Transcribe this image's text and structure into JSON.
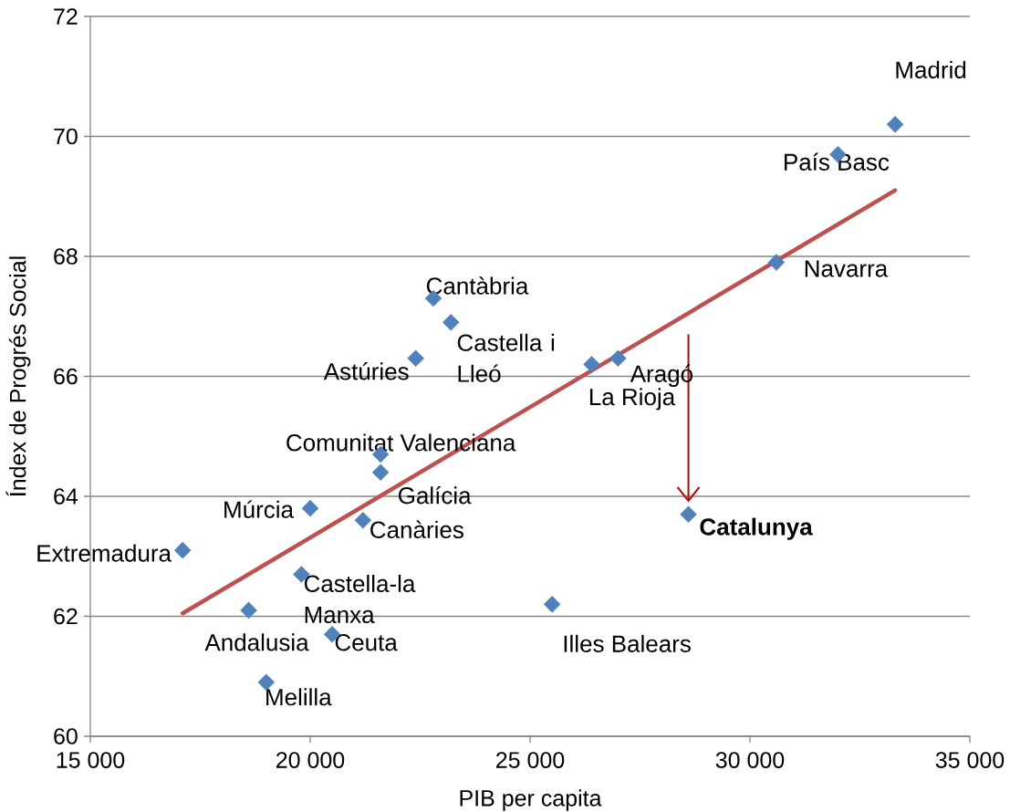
{
  "chart_data": {
    "type": "scatter",
    "xlabel": "PIB per capita",
    "ylabel": "Índex de Progrés Social",
    "xlim": [
      15000,
      35000
    ],
    "ylim": [
      60,
      72
    ],
    "xticks": [
      {
        "value": 15000,
        "label": "15 000"
      },
      {
        "value": 20000,
        "label": "20 000"
      },
      {
        "value": 25000,
        "label": "25 000"
      },
      {
        "value": 30000,
        "label": "30 000"
      },
      {
        "value": 35000,
        "label": "35 000"
      }
    ],
    "yticks": [
      60,
      62,
      64,
      66,
      68,
      70,
      72
    ],
    "grid": "y",
    "series": [
      {
        "color": "#4f81bd",
        "marker": "diamond",
        "x": [
          33300,
          32000,
          30600,
          27000,
          26400,
          28600,
          25500,
          22800,
          23200,
          22400,
          21600,
          21600,
          20000,
          21200,
          17100,
          19800,
          18600,
          20500,
          19000
        ],
        "values": [
          70.2,
          69.7,
          67.9,
          66.3,
          66.2,
          63.7,
          62.2,
          67.3,
          66.9,
          66.3,
          64.7,
          64.4,
          63.8,
          63.6,
          63.1,
          62.7,
          62.1,
          61.7,
          60.9
        ]
      },
      {
        "type": "line",
        "color": "#c0504d",
        "x": [
          17100,
          33300
        ],
        "values": [
          62.05,
          69.1
        ]
      },
      {
        "type": "line",
        "color": "#c00000",
        "x": [
          28600,
          28600
        ],
        "values": [
          66.7,
          63.9
        ]
      }
    ],
    "annotations": [
      {
        "text": "Madrid",
        "x": 33300,
        "y": 70.2
      },
      {
        "text": "País Basc",
        "x": 32000,
        "y": 69.7
      },
      {
        "text": "Navarra",
        "x": 30600,
        "y": 67.9
      },
      {
        "text": "Aragó",
        "x": 27000,
        "y": 66.3
      },
      {
        "text": "La Rioja",
        "x": 26400,
        "y": 66.2
      },
      {
        "text": "Catalunya",
        "x": 28600,
        "y": 63.7
      },
      {
        "text": "Illes Balears",
        "x": 25500,
        "y": 62.2
      },
      {
        "text": "Cantàbria",
        "x": 22800,
        "y": 67.3
      },
      {
        "text": "Castella i Lleó",
        "x": 23200,
        "y": 66.9
      },
      {
        "text": "Astúries",
        "x": 22400,
        "y": 66.3
      },
      {
        "text": "Comunitat Valenciana",
        "x": 21600,
        "y": 64.7
      },
      {
        "text": "Galícia",
        "x": 21600,
        "y": 64.4
      },
      {
        "text": "Múrcia",
        "x": 20000,
        "y": 63.8
      },
      {
        "text": "Canàries",
        "x": 21200,
        "y": 63.6
      },
      {
        "text": "Extremadura",
        "x": 17100,
        "y": 63.1
      },
      {
        "text": "Castella-la Manxa",
        "x": 19800,
        "y": 62.7
      },
      {
        "text": "Andalusia",
        "x": 18600,
        "y": 62.1
      },
      {
        "text": "Ceuta",
        "x": 20500,
        "y": 61.7
      },
      {
        "text": "Melilla",
        "x": 19000,
        "y": 60.9
      }
    ]
  }
}
